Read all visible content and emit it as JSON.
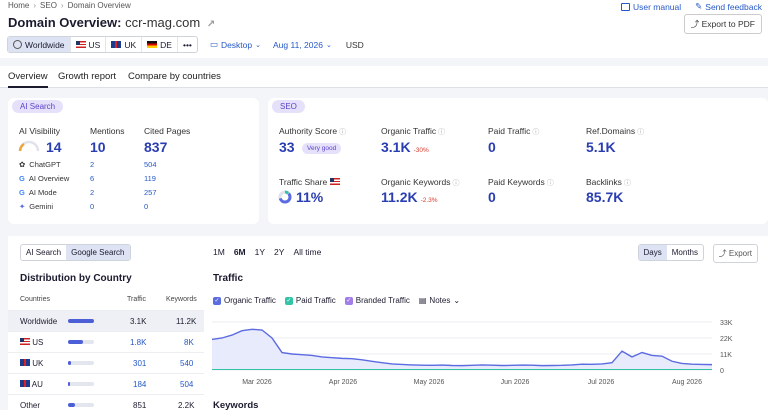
{
  "breadcrumb": [
    "Home",
    "SEO",
    "Domain Overview"
  ],
  "top_links": {
    "user_manual": "User manual",
    "send_feedback": "Send feedback"
  },
  "title": {
    "label": "Domain Overview:",
    "domain": "ccr-mag.com"
  },
  "export_pdf": "Export to PDF",
  "filters": {
    "worldwide": "Worldwide",
    "us": "US",
    "uk": "UK",
    "de": "DE",
    "more": "•••",
    "device": "Desktop",
    "date": "Aug 11, 2026",
    "currency": "USD"
  },
  "tabs": [
    "Overview",
    "Growth report",
    "Compare by countries"
  ],
  "ai_search": {
    "pill": "AI Search",
    "visibility_label": "AI Visibility",
    "visibility_value": "14",
    "mentions_label": "Mentions",
    "mentions_value": "10",
    "cited_label": "Cited Pages",
    "cited_value": "837",
    "rows": [
      {
        "name": "ChatGPT",
        "mentions": "2",
        "cited": "504"
      },
      {
        "name": "AI Overview",
        "mentions": "6",
        "cited": "119"
      },
      {
        "name": "AI Mode",
        "mentions": "2",
        "cited": "257"
      },
      {
        "name": "Gemini",
        "mentions": "0",
        "cited": "0"
      }
    ]
  },
  "seo": {
    "pill": "SEO",
    "authority_label": "Authority Score",
    "authority_value": "33",
    "authority_badge": "Very good",
    "organic_traffic_label": "Organic Traffic",
    "organic_traffic_value": "3.1K",
    "organic_traffic_change": "-30%",
    "paid_traffic_label": "Paid Traffic",
    "paid_traffic_value": "0",
    "ref_domains_label": "Ref.Domains",
    "ref_domains_value": "5.1K",
    "traffic_share_label": "Traffic Share",
    "traffic_share_value": "11%",
    "organic_kw_label": "Organic Keywords",
    "organic_kw_value": "11.2K",
    "organic_kw_change": "-2.3%",
    "paid_kw_label": "Paid Keywords",
    "paid_kw_value": "0",
    "backlinks_label": "Backlinks",
    "backlinks_value": "85.7K"
  },
  "distribution": {
    "toggle": [
      "AI Search",
      "Google Search"
    ],
    "title": "Distribution by Country",
    "headers": [
      "Countries",
      "Traffic",
      "Keywords"
    ],
    "rows": [
      {
        "country": "Worldwide",
        "traffic": "3.1K",
        "keywords": "11.2K",
        "share": 1.0
      },
      {
        "country": "US",
        "traffic": "1.8K",
        "keywords": "8K",
        "share": 0.58
      },
      {
        "country": "UK",
        "traffic": "301",
        "keywords": "540",
        "share": 0.1
      },
      {
        "country": "AU",
        "traffic": "184",
        "keywords": "504",
        "share": 0.06
      },
      {
        "country": "Other",
        "traffic": "851",
        "keywords": "2.2K",
        "share": 0.27
      }
    ]
  },
  "traffic": {
    "ranges": [
      "1M",
      "6M",
      "1Y",
      "2Y",
      "All time"
    ],
    "days": "Days",
    "months": "Months",
    "export": "Export",
    "title": "Traffic",
    "legend": [
      "Organic Traffic",
      "Paid Traffic",
      "Branded Traffic"
    ],
    "notes": "Notes",
    "keywords_title": "Keywords",
    "colors": {
      "organic": "#5b6be0",
      "paid": "#33c3a6",
      "branded": "#a47ee8"
    }
  },
  "chart_data": {
    "type": "line",
    "x_tick_labels": [
      "Mar 2026",
      "Apr 2026",
      "May 2026",
      "Jun 2026",
      "Jul 2026",
      "Aug 2026"
    ],
    "y_tick_labels": [
      "33K",
      "22K",
      "11K",
      "0"
    ],
    "ylim": [
      0,
      33000
    ],
    "series": [
      {
        "name": "Organic Traffic",
        "values": [
          21000,
          22000,
          24000,
          27000,
          28000,
          27500,
          22000,
          12000,
          11000,
          10500,
          10000,
          9000,
          8500,
          8000,
          7800,
          7000,
          6000,
          5000,
          4200,
          3800,
          3500,
          3300,
          3200,
          3400,
          3100,
          3000,
          3200,
          3500,
          3300,
          3100,
          3200,
          3400,
          3300,
          3000,
          3100,
          3200,
          3500,
          4000,
          3900,
          4200,
          5000,
          13000,
          9000,
          12000,
          10000,
          9500,
          6000,
          4500,
          4000,
          3800,
          3700
        ]
      }
    ]
  }
}
